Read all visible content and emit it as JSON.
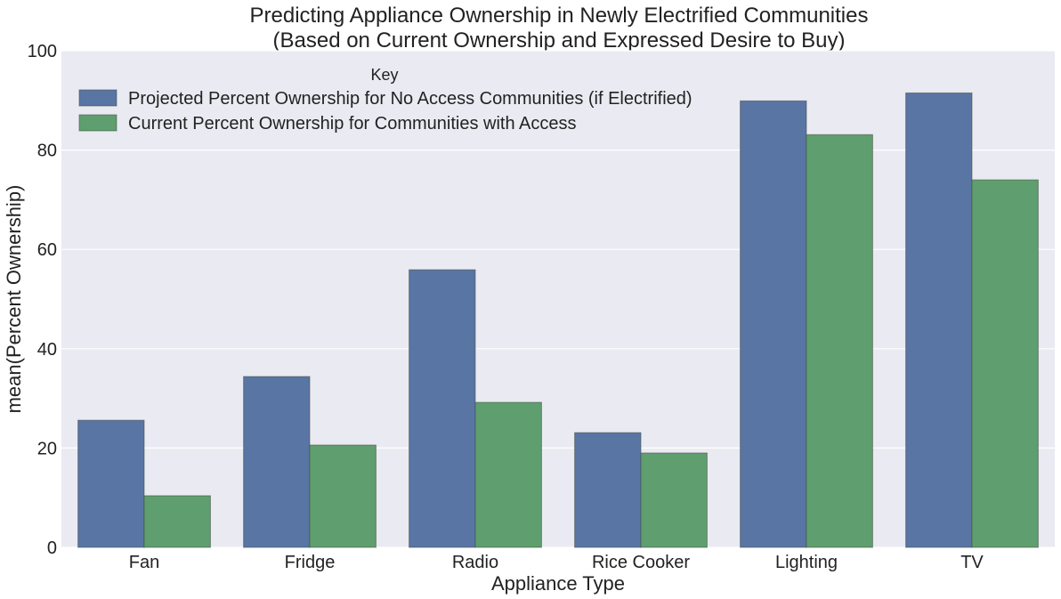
{
  "chart_data": {
    "type": "bar",
    "title_line1": "Predicting Appliance Ownership in Newly Electrified Communities",
    "title_line2": "(Based on Current Ownership and Expressed Desire to Buy)",
    "xlabel": "Appliance Type",
    "ylabel": "mean(Percent Ownership)",
    "ylim": [
      0,
      100
    ],
    "yticks": [
      0,
      20,
      40,
      60,
      80,
      100
    ],
    "categories": [
      "Fan",
      "Fridge",
      "Radio",
      "Rice Cooker",
      "Lighting",
      "TV"
    ],
    "series": [
      {
        "name": "Projected Percent Ownership for No Access Communities (if Electrified)",
        "color": "#5975a4",
        "values": [
          25.6,
          34.4,
          55.9,
          23.1,
          89.9,
          91.5
        ]
      },
      {
        "name": "Current Percent Ownership for Communities with Access",
        "color": "#5f9e6e",
        "values": [
          10.4,
          20.6,
          29.2,
          19.0,
          83.1,
          74.0
        ]
      }
    ],
    "legend": {
      "title": "Key",
      "position": "top-left"
    },
    "grid": true,
    "background": "#eaeaf2"
  }
}
